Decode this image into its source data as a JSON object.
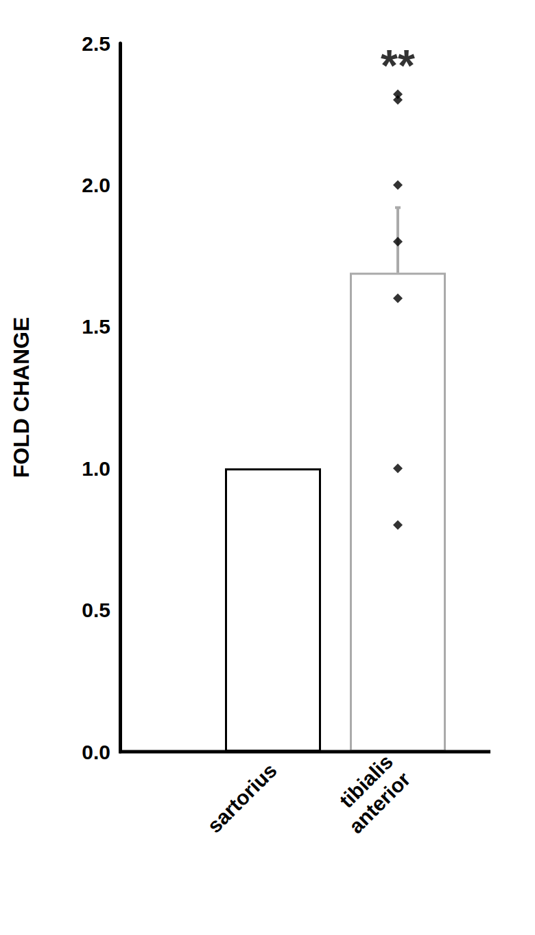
{
  "chart_data": {
    "type": "bar",
    "y_label": "FOLD CHANGE",
    "categories": [
      "sartorius",
      "tibialis anterior"
    ],
    "values": [
      1.0,
      1.69
    ],
    "errors": [
      0,
      0.23
    ],
    "colors": [
      "#000000",
      "#aaaaaa"
    ],
    "points": [
      [],
      [
        2.32,
        2.3,
        2.0,
        1.8,
        1.6,
        1.0,
        0.8
      ]
    ],
    "annotations": [
      {
        "text": "**",
        "category": "tibialis anterior",
        "y": 2.42
      }
    ],
    "ylim": [
      0,
      2.5
    ],
    "yticks": [
      {
        "value": 0,
        "label": "0.0"
      },
      0.5,
      {
        "value": 1,
        "label": "1.0"
      },
      1.5,
      {
        "value": 2,
        "label": "2.0"
      },
      2.5
    ],
    "grid": false
  }
}
